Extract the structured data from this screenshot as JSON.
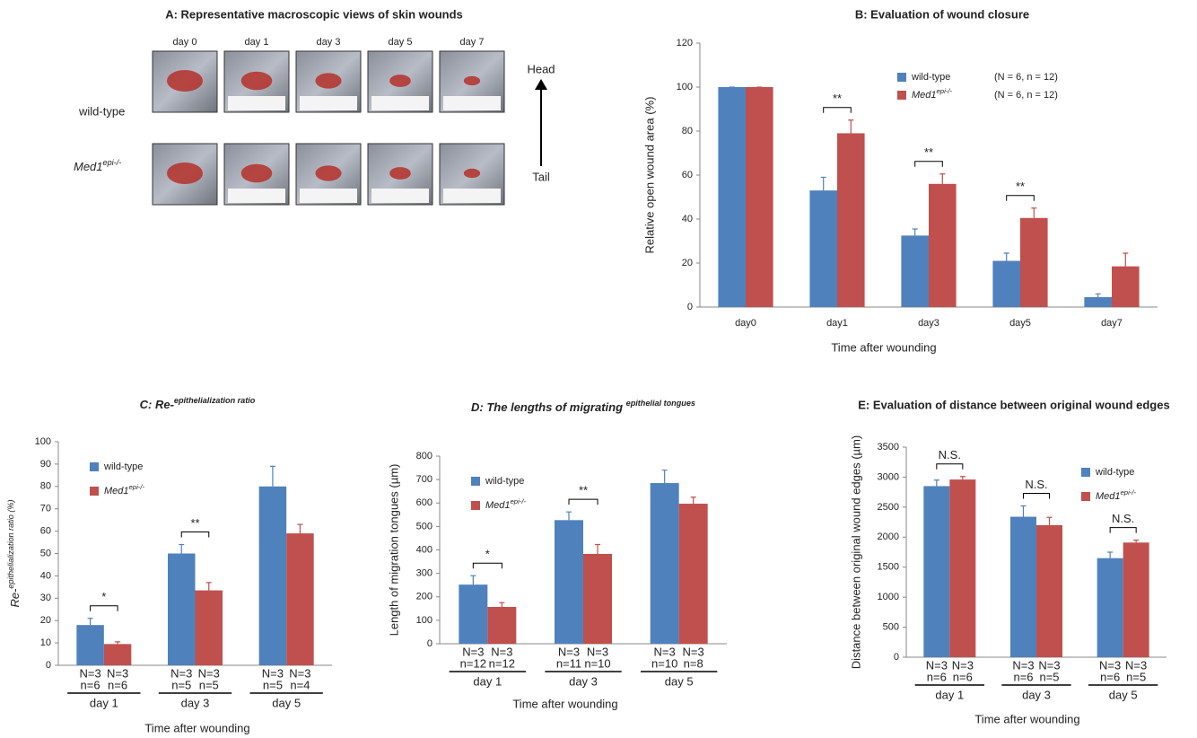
{
  "panel_a": {
    "title": "A: Representative macroscopic views of skin wounds",
    "days": [
      "day 0",
      "day 1",
      "day 3",
      "day 5",
      "day 7"
    ],
    "rows": [
      "wild-type",
      "Med1epi-/-"
    ],
    "head": "Head",
    "tail": "Tail"
  },
  "chart_data": [
    {
      "type": "bar",
      "title": "B: Evaluation of wound closure",
      "xlabel": "Time after wounding",
      "ylabel": "Relative open wound area (%)",
      "categories": [
        "day0",
        "day1",
        "day3",
        "day5",
        "day7"
      ],
      "ylim": [
        0,
        120
      ],
      "yticks": [
        0,
        20,
        40,
        60,
        80,
        100,
        120
      ],
      "legend": "upper right",
      "significance": [
        null,
        "**",
        "**",
        "**",
        null
      ],
      "series": [
        {
          "name": "wild-type",
          "legend_note": "(N = 6, n = 12)",
          "color": "#4f81bd",
          "values": [
            100,
            53,
            32.5,
            21,
            4.5
          ],
          "errors": [
            0,
            6,
            3,
            3.5,
            1.5
          ]
        },
        {
          "name": "Med1epi-/-",
          "legend_note": "(N = 6, n = 12)",
          "color": "#c0504d",
          "values": [
            100,
            79,
            56,
            40.5,
            18.5
          ],
          "errors": [
            0,
            6,
            4.5,
            4.5,
            6
          ]
        }
      ]
    },
    {
      "type": "bar",
      "title": "C: Re-epithelialization ratio",
      "xlabel": "Time after wounding",
      "ylabel": "Re-epithelialization ratio (%)",
      "categories": [
        "day 1",
        "day 3",
        "day 5"
      ],
      "ylim": [
        0,
        100
      ],
      "yticks": [
        0,
        10,
        20,
        30,
        40,
        50,
        60,
        70,
        80,
        90,
        100
      ],
      "legend": "upper left",
      "significance": [
        "*",
        "**",
        null
      ],
      "series": [
        {
          "name": "wild-type",
          "color": "#4f81bd",
          "values": [
            18,
            50,
            80
          ],
          "errors": [
            3,
            4,
            9
          ],
          "N_labels": [
            "N=3",
            "N=3",
            "N=3"
          ],
          "n_labels": [
            "n=6",
            "n=5",
            "n=5"
          ]
        },
        {
          "name": "Med1epi-/-",
          "color": "#c0504d",
          "values": [
            9.5,
            33.5,
            59
          ],
          "errors": [
            1,
            3.5,
            4
          ],
          "N_labels": [
            "N=3",
            "N=3",
            "N=3"
          ],
          "n_labels": [
            "n=6",
            "n=5",
            "n=4"
          ]
        }
      ]
    },
    {
      "type": "bar",
      "title": "D: The lengths of migrating epithelial tongues",
      "xlabel": "Time after wounding",
      "ylabel": "Length of migration  tongues (µm)",
      "categories": [
        "day 1",
        "day 3",
        "day 5"
      ],
      "ylim": [
        0,
        800
      ],
      "yticks": [
        0,
        100,
        200,
        300,
        400,
        500,
        600,
        700,
        800
      ],
      "legend": "upper left",
      "significance": [
        "*",
        "**",
        null
      ],
      "series": [
        {
          "name": "wild-type",
          "color": "#4f81bd",
          "values": [
            252,
            527,
            685
          ],
          "errors": [
            38,
            35,
            55
          ],
          "N_labels": [
            "N=3",
            "N=3",
            "N=3"
          ],
          "n_labels": [
            "n=12",
            "n=11",
            "n=10"
          ]
        },
        {
          "name": "Med1epi-/-",
          "color": "#c0504d",
          "values": [
            157,
            383,
            597
          ],
          "errors": [
            18,
            40,
            28
          ],
          "N_labels": [
            "N=3",
            "N=3",
            "N=3"
          ],
          "n_labels": [
            "n=12",
            "n=10",
            "n=8"
          ]
        }
      ]
    },
    {
      "type": "bar",
      "title": "E: Evaluation of distance between original wound edges",
      "xlabel": "Time after wounding",
      "ylabel": "Distance between original wound edges (µm)",
      "categories": [
        "day 1",
        "day 3",
        "day 5"
      ],
      "ylim": [
        0,
        3500
      ],
      "yticks": [
        0,
        500,
        1000,
        1500,
        2000,
        2500,
        3000,
        3500
      ],
      "legend": "upper right",
      "significance": [
        "N.S.",
        "N.S.",
        "N.S."
      ],
      "series": [
        {
          "name": "wild-type",
          "color": "#4f81bd",
          "values": [
            2850,
            2340,
            1650
          ],
          "errors": [
            100,
            180,
            100
          ],
          "N_labels": [
            "N=3",
            "N=3",
            "N=3"
          ],
          "n_labels": [
            "n=6",
            "n=6",
            "n=6"
          ]
        },
        {
          "name": "Med1epi-/-",
          "color": "#c0504d",
          "values": [
            2960,
            2200,
            1910
          ],
          "errors": [
            50,
            130,
            40
          ],
          "N_labels": [
            "N=3",
            "N=3",
            "N=3"
          ],
          "n_labels": [
            "n=6",
            "n=5",
            "n=5"
          ]
        }
      ]
    }
  ]
}
